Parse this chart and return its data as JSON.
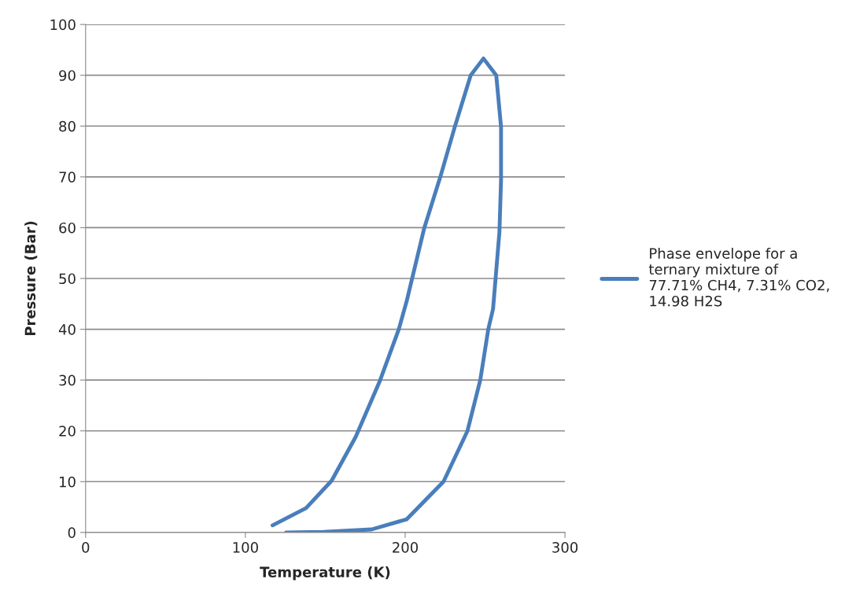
{
  "chart_data": {
    "type": "line",
    "xlabel": "Temperature (K)",
    "ylabel": "Pressure (Bar)",
    "xlim": [
      0,
      300
    ],
    "xticks": [
      0,
      100,
      200,
      300
    ],
    "ylim": [
      0,
      100
    ],
    "yticks": [
      0,
      10,
      20,
      30,
      40,
      50,
      60,
      70,
      80,
      90,
      100
    ],
    "grid": "y",
    "legend": "right",
    "marker": "none",
    "line_style": "solid",
    "series": [
      {
        "name": "Phase envelope for a\nternary mixture of\n77.71% CH4, 7.31% CO2,\n14.98 H2S",
        "color": "#4a7ebb",
        "x": [
          117,
          138,
          154,
          169,
          184,
          196,
          201,
          212,
          222,
          231,
          241,
          249,
          257,
          260,
          260,
          259,
          255,
          252,
          247,
          239,
          224,
          201,
          179,
          149,
          125.5
        ],
        "values": [
          1.4,
          4.8,
          10.2,
          18.8,
          29.7,
          40,
          45.6,
          60,
          70,
          79.8,
          90,
          93.3,
          90,
          79.8,
          69.4,
          59.2,
          44,
          40,
          30,
          20,
          10,
          2.6,
          0.6,
          0.1,
          0
        ]
      }
    ]
  }
}
